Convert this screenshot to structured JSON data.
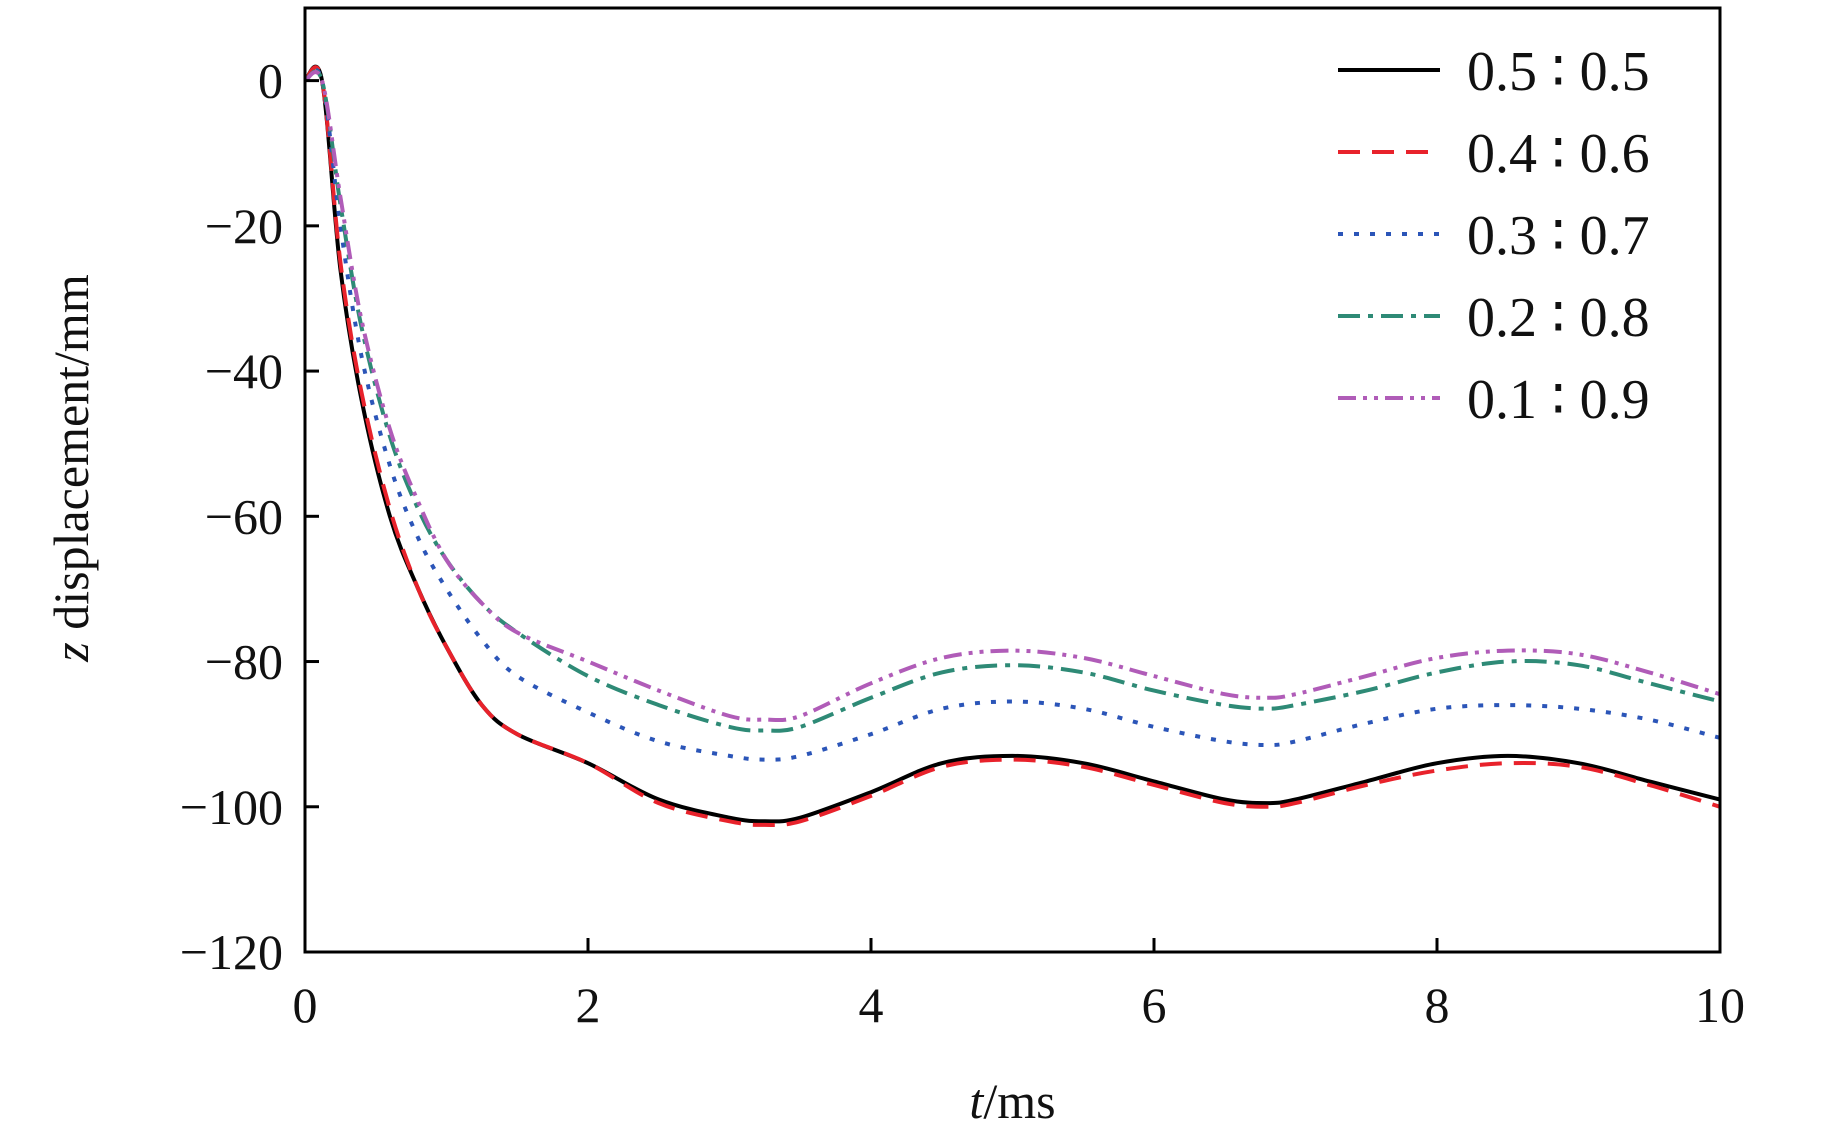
{
  "chart_data": {
    "type": "line",
    "title": "",
    "xlabel_var": "t",
    "xlabel_unit": "/ms",
    "ylabel_var": "z",
    "ylabel_unit": " displacement/mm",
    "xlim": [
      0,
      10
    ],
    "ylim": [
      -120,
      10
    ],
    "xticks": [
      0,
      2,
      4,
      6,
      8,
      10
    ],
    "yticks": [
      0,
      -20,
      -40,
      -60,
      -80,
      -100,
      -120
    ],
    "xtick_labels": [
      "0",
      "2",
      "4",
      "6",
      "8",
      "10"
    ],
    "ytick_labels": [
      "0",
      "−20",
      "−40",
      "−60",
      "−80",
      "−100",
      "−120"
    ],
    "grid": false,
    "legend_position": "top-right",
    "x": [
      0,
      0.12,
      0.25,
      0.4,
      0.6,
      0.8,
      1.0,
      1.25,
      1.5,
      2.0,
      2.5,
      3.0,
      3.25,
      3.5,
      4.0,
      4.5,
      5.0,
      5.5,
      6.0,
      6.5,
      6.8,
      7.0,
      7.5,
      8.0,
      8.5,
      9.0,
      9.5,
      10.0
    ],
    "series": [
      {
        "name": "0.5 ∶ 0.5",
        "color": "#000000",
        "dash": "solid",
        "values": [
          0,
          0,
          -26,
          -44,
          -60,
          -70,
          -78,
          -86,
          -90,
          -94,
          -99,
          -101.5,
          -102,
          -101.5,
          -98,
          -94,
          -93,
          -94,
          -96.5,
          -99,
          -99.5,
          -99,
          -96.5,
          -94,
          -93,
          -94,
          -96.5,
          -99
        ]
      },
      {
        "name": "0.4 ∶ 0.6",
        "color": "#e8222b",
        "dash": "dashed",
        "values": [
          0,
          0,
          -25,
          -43,
          -59,
          -70,
          -78,
          -86,
          -90,
          -94,
          -99.5,
          -102,
          -102.5,
          -102,
          -98.5,
          -94.5,
          -93.5,
          -94.5,
          -97,
          -99.5,
          -100,
          -99.5,
          -97,
          -95,
          -94,
          -94.5,
          -97,
          -100
        ]
      },
      {
        "name": "0.3 ∶ 0.7",
        "color": "#2b55b8",
        "dash": "dotted",
        "values": [
          0,
          0,
          -20,
          -38,
          -53,
          -63,
          -70,
          -77,
          -82,
          -87,
          -91,
          -93,
          -93.5,
          -93,
          -90,
          -86.5,
          -85.5,
          -86.5,
          -89,
          -91,
          -91.5,
          -91,
          -88.5,
          -86.5,
          -86,
          -86.5,
          -88,
          -90.5
        ]
      },
      {
        "name": "0.2 ∶ 0.8",
        "color": "#2e8a76",
        "dash": "dashdot",
        "values": [
          0,
          0,
          -17,
          -34,
          -49,
          -59,
          -66,
          -72,
          -76,
          -82,
          -86,
          -89,
          -89.5,
          -89,
          -85,
          -81.5,
          -80.5,
          -81.5,
          -84,
          -86,
          -86.5,
          -86,
          -84,
          -81.5,
          -80,
          -80.5,
          -83,
          -85.5
        ]
      },
      {
        "name": "0.1 ∶ 0.9",
        "color": "#b05cb8",
        "dash": "dashdotdot",
        "values": [
          0,
          0,
          -16,
          -33,
          -48,
          -58,
          -66,
          -72,
          -76,
          -80,
          -84,
          -87.5,
          -88,
          -87.5,
          -83,
          -79.5,
          -78.5,
          -79.5,
          -82,
          -84.5,
          -85,
          -84.5,
          -82,
          -79.5,
          -78.5,
          -79,
          -81.5,
          -84.5
        ]
      }
    ]
  }
}
